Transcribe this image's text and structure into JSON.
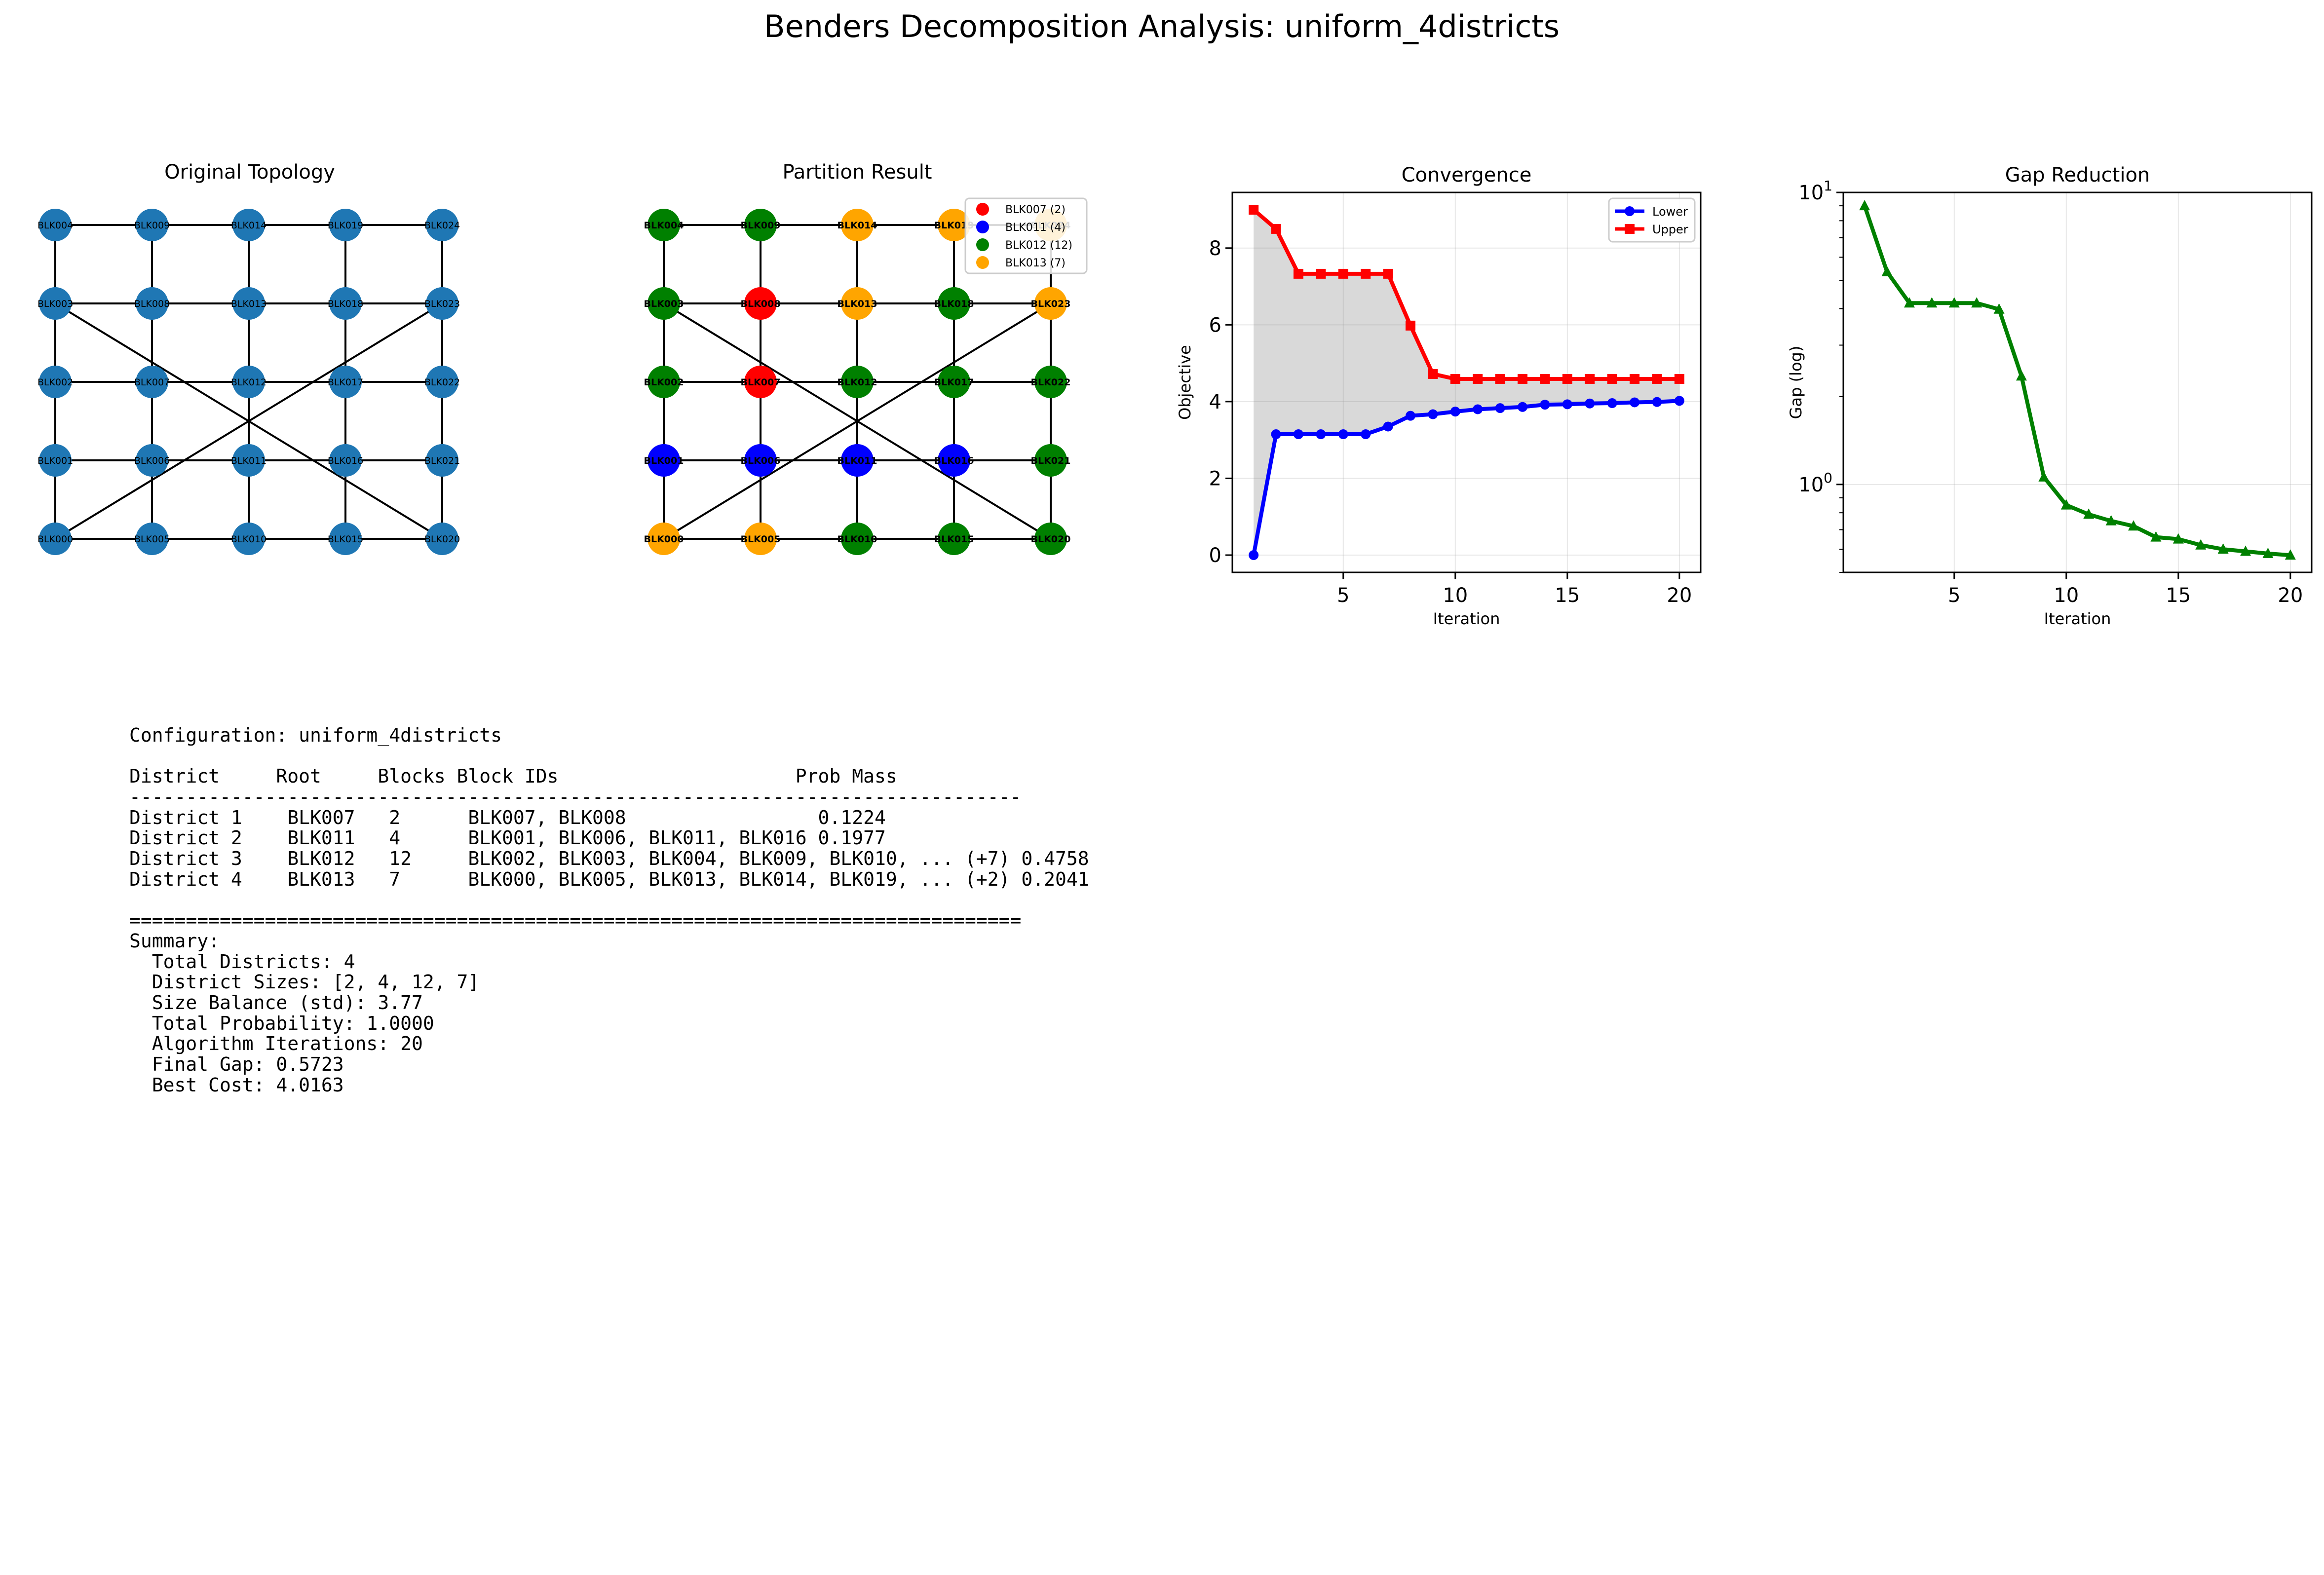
{
  "figure_title": "Benders Decomposition Analysis: uniform_4districts",
  "topology": {
    "title": "Original Topology",
    "grid": [
      [
        "BLK004",
        "BLK009",
        "BLK014",
        "BLK019",
        "BLK024"
      ],
      [
        "BLK003",
        "BLK008",
        "BLK013",
        "BLK018",
        "BLK023"
      ],
      [
        "BLK002",
        "BLK007",
        "BLK012",
        "BLK017",
        "BLK022"
      ],
      [
        "BLK001",
        "BLK006",
        "BLK011",
        "BLK016",
        "BLK021"
      ],
      [
        "BLK000",
        "BLK005",
        "BLK010",
        "BLK015",
        "BLK020"
      ]
    ],
    "extra_edges": [
      [
        "BLK003",
        "BLK020"
      ],
      [
        "BLK000",
        "BLK023"
      ]
    ],
    "node_color": "#1f77b4"
  },
  "partition": {
    "title": "Partition Result",
    "legend": [
      {
        "label": "BLK007 (2)",
        "color": "#ff0000"
      },
      {
        "label": "BLK011 (4)",
        "color": "#0000ff"
      },
      {
        "label": "BLK012 (12)",
        "color": "#008000"
      },
      {
        "label": "BLK013 (7)",
        "color": "#ffa500"
      }
    ],
    "node_colors": [
      [
        "#008000",
        "#008000",
        "#ffa500",
        "#ffa500",
        "#ffa500"
      ],
      [
        "#008000",
        "#ff0000",
        "#ffa500",
        "#008000",
        "#ffa500"
      ],
      [
        "#008000",
        "#ff0000",
        "#008000",
        "#008000",
        "#008000"
      ],
      [
        "#0000ff",
        "#0000ff",
        "#0000ff",
        "#0000ff",
        "#008000"
      ],
      [
        "#ffa500",
        "#ffa500",
        "#008000",
        "#008000",
        "#008000"
      ]
    ]
  },
  "chart_data": [
    {
      "type": "line",
      "title": "Convergence",
      "xlabel": "Iteration",
      "ylabel": "Objective",
      "x": [
        1,
        2,
        3,
        4,
        5,
        6,
        7,
        8,
        9,
        10,
        11,
        12,
        13,
        14,
        15,
        16,
        17,
        18,
        19,
        20
      ],
      "xticks": [
        5,
        10,
        15,
        20
      ],
      "yticks": [
        0,
        2,
        4,
        6,
        8
      ],
      "xlim": [
        0.05,
        20.95
      ],
      "ylim": [
        -0.45,
        9.45
      ],
      "grid": true,
      "legend_position": "upper right",
      "series": [
        {
          "name": "Lower",
          "color": "#0000ff",
          "marker": "circle",
          "values": [
            0.0,
            3.15,
            3.15,
            3.15,
            3.15,
            3.15,
            3.35,
            3.63,
            3.67,
            3.74,
            3.8,
            3.83,
            3.86,
            3.92,
            3.93,
            3.95,
            3.96,
            3.98,
            3.99,
            4.02
          ]
        },
        {
          "name": "Upper",
          "color": "#ff0000",
          "marker": "square",
          "values": [
            9.0,
            8.5,
            7.33,
            7.33,
            7.33,
            7.33,
            7.33,
            5.98,
            4.72,
            4.59,
            4.59,
            4.59,
            4.59,
            4.59,
            4.59,
            4.59,
            4.59,
            4.59,
            4.59,
            4.59
          ]
        }
      ]
    },
    {
      "type": "line",
      "title": "Gap Reduction",
      "xlabel": "Iteration",
      "ylabel": "Gap (log)",
      "yscale": "log",
      "x": [
        1,
        2,
        3,
        4,
        5,
        6,
        7,
        8,
        9,
        10,
        11,
        12,
        13,
        14,
        15,
        16,
        17,
        18,
        19,
        20
      ],
      "xticks": [
        5,
        10,
        15,
        20
      ],
      "yticks": [
        {
          "value": 1,
          "base": "10",
          "exp": "0"
        },
        {
          "value": 10,
          "base": "10",
          "exp": "1"
        }
      ],
      "xlim": [
        0.05,
        20.95
      ],
      "ylim": [
        0.5,
        10
      ],
      "grid": true,
      "series": [
        {
          "name": "",
          "color": "#008000",
          "marker": "triangle",
          "values": [
            9.0,
            5.35,
            4.18,
            4.18,
            4.18,
            4.18,
            3.98,
            2.35,
            1.06,
            0.85,
            0.79,
            0.75,
            0.72,
            0.66,
            0.65,
            0.62,
            0.6,
            0.59,
            0.58,
            0.5723
          ]
        }
      ]
    }
  ],
  "config_lines": [
    "Configuration: uniform_4districts",
    "",
    "District     Root     Blocks Block IDs                     Prob Mass",
    "-------------------------------------------------------------------------------",
    "District 1    BLK007   2      BLK007, BLK008                 0.1224",
    "District 2    BLK011   4      BLK001, BLK006, BLK011, BLK016 0.1977",
    "District 3    BLK012   12     BLK002, BLK003, BLK004, BLK009, BLK010, ... (+7) 0.4758",
    "District 4    BLK013   7      BLK000, BLK005, BLK013, BLK014, BLK019, ... (+2) 0.2041",
    "",
    "===============================================================================",
    "Summary:",
    "  Total Districts: 4",
    "  District Sizes: [2, 4, 12, 7]",
    "  Size Balance (std): 3.77",
    "  Total Probability: 1.0000",
    "  Algorithm Iterations: 20",
    "  Final Gap: 0.5723",
    "  Best Cost: 4.0163"
  ]
}
